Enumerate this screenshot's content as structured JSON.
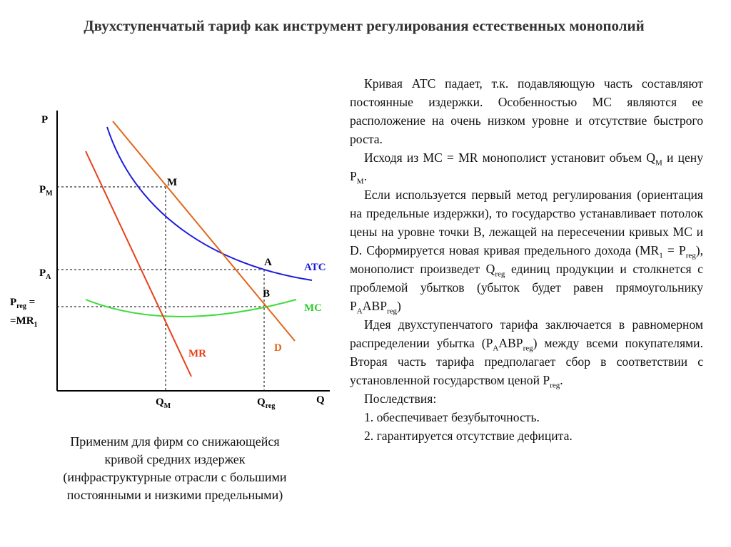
{
  "header": {
    "title": "Двухступенчатый тариф как инструмент регулирования естественных монополий"
  },
  "diagram": {
    "labels": [
      {
        "text": "P"
      },
      {
        "text": "P",
        "sub": "M"
      },
      {
        "text": "M"
      },
      {
        "text": "P",
        "sub": "A"
      },
      {
        "text": "A"
      },
      {
        "text": "ATC"
      },
      {
        "text": "B"
      },
      {
        "text": "MC"
      },
      {
        "text": "P",
        "sub": "reg",
        "after": " ="
      },
      {
        "text": "=MR",
        "sub": "1"
      },
      {
        "text": "MR"
      },
      {
        "text": "D"
      },
      {
        "text": "Q",
        "sub": "M"
      },
      {
        "text": "Q",
        "sub": "reg"
      },
      {
        "text": "Q"
      }
    ]
  },
  "caption": {
    "lines": [
      "Применим для фирм со снижающейся",
      "кривой средних издержек",
      "(инфраструктурные отрасли с большими",
      "постоянными и низкими предельными)"
    ]
  },
  "body": {
    "paragraphs": [
      "Кривая АТС падает, т.к. подавляющую часть составляют постоянные издержки. Особенностью МС являются ее расположение на очень низком уровне и отсутствие быстрого роста.",
      [
        "Исходя из MC = MR монополист установит объем Q",
        {
          "sub": "M"
        },
        " и цену P",
        {
          "sub": "M"
        },
        "."
      ],
      [
        "Если используется первый метод регулирования (ориентация на предельные издержки), то государство устанавливает потолок цены на уровне точки В, лежащей на пересечении кривых МС и D. Сформируется новая кривая предельного дохода (MR",
        {
          "sub": "1"
        },
        " = P",
        {
          "sub": "reg"
        },
        "), монополист произведет Q",
        {
          "sub": "reg"
        },
        " единиц продукции и столкнется с проблемой убытков (убыток будет равен прямоугольнику P",
        {
          "sub": "A"
        },
        "ABP",
        {
          "sub": "reg"
        },
        ")"
      ],
      [
        "Идея двухступенчатого тарифа заключается в равномерном распределении убытка (P",
        {
          "sub": "A"
        },
        "ABP",
        {
          "sub": "reg"
        },
        ") между всеми покупателями. Вторая часть тарифа предполагает сбор в соответствии с установленной государством ценой P",
        {
          "sub": "reg"
        },
        "."
      ],
      "Последствия:",
      "1. обеспечивает безубыточность.",
      "2. гарантируется отсутствие дефицита."
    ]
  }
}
